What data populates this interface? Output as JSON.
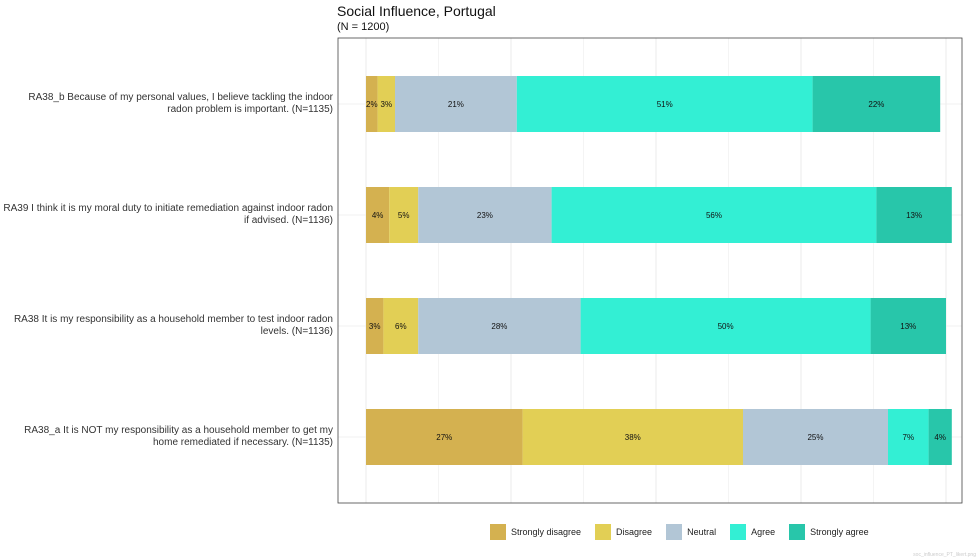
{
  "chart_data": {
    "type": "bar",
    "orientation": "horizontal-stacked",
    "title": "Social Influence, Portugal",
    "subtitle": "(N = 1200)",
    "xlim": [
      0,
      100
    ],
    "grid": true,
    "legend_position": "bottom",
    "categories": [
      "RA38_b Because of my personal values, I believe tackling the indoor radon problem is important. (N=1135)",
      "RA39 I think it is my moral duty to initiate remediation against indoor radon if advised. (N=1136)",
      "RA38 It is my responsibility as a household member to test indoor radon levels. (N=1136)",
      "RA38_a It is NOT my responsibility as a household member to get my home remediated if necessary. (N=1135)"
    ],
    "series": [
      {
        "name": "Strongly disagree",
        "color": "#d4b150",
        "values": [
          2,
          4,
          3,
          27
        ],
        "labels": [
          "2%",
          "4%",
          "3%",
          "27%"
        ]
      },
      {
        "name": "Disagree",
        "color": "#e2cf55",
        "values": [
          3,
          5,
          6,
          38
        ],
        "labels": [
          "3%",
          "5%",
          "6%",
          "38%"
        ]
      },
      {
        "name": "Neutral",
        "color": "#b2c6d6",
        "values": [
          21,
          23,
          28,
          25
        ],
        "labels": [
          "21%",
          "23%",
          "28%",
          "25%"
        ]
      },
      {
        "name": "Agree",
        "color": "#33efd4",
        "values": [
          51,
          56,
          50,
          7
        ],
        "labels": [
          "51%",
          "56%",
          "50%",
          "7%"
        ]
      },
      {
        "name": "Strongly agree",
        "color": "#28c6aa",
        "values": [
          22,
          13,
          13,
          4
        ],
        "labels": [
          "22%",
          "13%",
          "13%",
          "4%"
        ]
      }
    ]
  },
  "footnote": "soc_influence_PT_likert.png"
}
